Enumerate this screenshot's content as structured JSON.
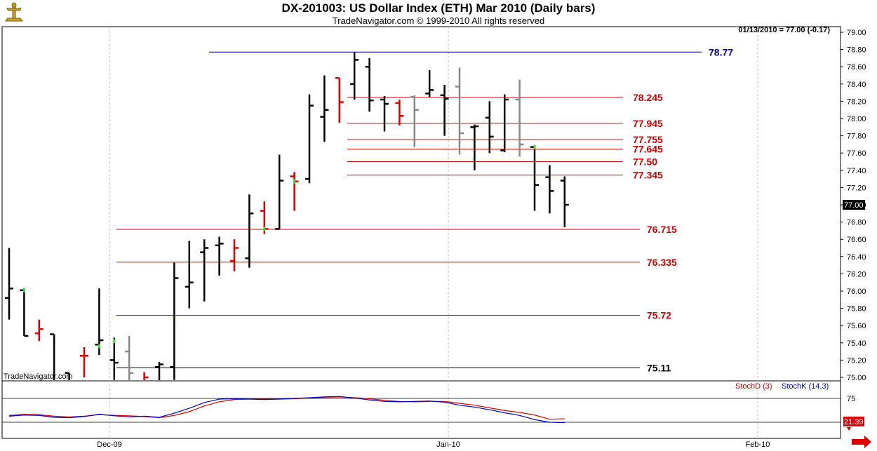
{
  "header": {
    "title": "DX-201003:  US Dollar Index (ETH) Mar 2010  (Daily bars)",
    "subtitle": "TradeNavigator.com © 1999-2010 All rights reserved",
    "last_readout": "01/13/2010 = 77.00 (-0.17)"
  },
  "watermark": "TradeNavigator.com",
  "price_tag": "77.00",
  "stoch_tag": "21.39",
  "colors": {
    "up": "#000000",
    "down": "#dd0000",
    "unchanged": "#888888",
    "bullish_close": "#33dd33",
    "level": "#cc0000",
    "top_level": "#000099",
    "stochD": "#dd0000",
    "stochK": "#0000cc",
    "grid": "#bbbbbb",
    "axis": "#000000"
  },
  "chart_data": [
    {
      "type": "ohlc",
      "ylim": [
        75.0,
        79.1
      ],
      "yticks": [
        "79.00",
        "78.80",
        "78.60",
        "78.40",
        "78.20",
        "78.00",
        "77.80",
        "77.60",
        "77.40",
        "77.20",
        "77.00",
        "76.80",
        "76.60",
        "76.40",
        "76.20",
        "76.00",
        "75.80",
        "75.60",
        "75.40",
        "75.20",
        "75.00"
      ],
      "xticks": [
        "Dec-09",
        "Jan-10",
        "Feb-10"
      ],
      "last_value": 77.0,
      "bars": [
        {
          "o": 75.92,
          "h": 76.5,
          "l": 75.67,
          "c": 76.03,
          "col": "up"
        },
        {
          "o": 76.01,
          "h": 76.01,
          "l": 75.48,
          "c": 75.48,
          "col": "up"
        },
        {
          "o": 75.51,
          "h": 75.67,
          "l": 75.42,
          "c": 75.56,
          "col": "down"
        },
        {
          "o": 75.5,
          "h": 75.5,
          "l": 74.9,
          "c": 74.95,
          "col": "up"
        },
        {
          "o": 75.05,
          "h": 75.05,
          "l": 74.75,
          "c": 74.8,
          "col": "up"
        },
        {
          "o": 75.25,
          "h": 75.35,
          "l": 75.0,
          "c": 75.25,
          "col": "down"
        },
        {
          "o": 75.38,
          "h": 76.03,
          "l": 75.26,
          "c": 75.43,
          "col": "up"
        },
        {
          "o": 75.2,
          "h": 75.46,
          "l": 74.9,
          "c": 75.17,
          "col": "up"
        },
        {
          "o": 75.3,
          "h": 75.48,
          "l": 74.95,
          "c": 75.05,
          "col": "gray"
        },
        {
          "o": 74.95,
          "h": 75.06,
          "l": 74.8,
          "c": 75.0,
          "col": "down"
        },
        {
          "o": 75.12,
          "h": 75.18,
          "l": 74.9,
          "c": 75.15,
          "col": "up"
        },
        {
          "o": 75.12,
          "h": 76.33,
          "l": 74.97,
          "c": 76.15,
          "col": "up"
        },
        {
          "o": 76.05,
          "h": 76.58,
          "l": 75.8,
          "c": 76.1,
          "col": "up"
        },
        {
          "o": 76.45,
          "h": 76.6,
          "l": 75.88,
          "c": 76.5,
          "col": "up"
        },
        {
          "o": 76.53,
          "h": 76.63,
          "l": 76.18,
          "c": 76.55,
          "col": "up"
        },
        {
          "o": 76.35,
          "h": 76.6,
          "l": 76.23,
          "c": 76.5,
          "col": "down"
        },
        {
          "o": 76.38,
          "h": 77.12,
          "l": 76.27,
          "c": 76.9,
          "col": "up"
        },
        {
          "o": 76.93,
          "h": 77.04,
          "l": 76.66,
          "c": 76.72,
          "col": "down"
        },
        {
          "o": 76.72,
          "h": 77.58,
          "l": 76.72,
          "c": 77.28,
          "col": "up"
        },
        {
          "o": 77.33,
          "h": 77.38,
          "l": 76.93,
          "c": 77.27,
          "col": "down"
        },
        {
          "o": 77.3,
          "h": 78.28,
          "l": 77.25,
          "c": 78.15,
          "col": "up"
        },
        {
          "o": 78.02,
          "h": 78.5,
          "l": 77.73,
          "c": 78.1,
          "col": "up"
        },
        {
          "o": 78.47,
          "h": 78.47,
          "l": 77.95,
          "c": 78.19,
          "col": "down"
        },
        {
          "o": 78.4,
          "h": 78.77,
          "l": 78.22,
          "c": 78.68,
          "col": "up"
        },
        {
          "o": 78.6,
          "h": 78.7,
          "l": 78.08,
          "c": 78.21,
          "col": "up"
        },
        {
          "o": 78.22,
          "h": 78.26,
          "l": 77.85,
          "c": 78.17,
          "col": "up"
        },
        {
          "o": 78.18,
          "h": 78.22,
          "l": 77.92,
          "c": 78.03,
          "col": "down"
        },
        {
          "o": 78.25,
          "h": 78.27,
          "l": 77.67,
          "c": 78.1,
          "col": "gray"
        },
        {
          "o": 78.29,
          "h": 78.56,
          "l": 78.25,
          "c": 78.33,
          "col": "up"
        },
        {
          "o": 78.27,
          "h": 78.39,
          "l": 77.8,
          "c": 78.23,
          "col": "up"
        },
        {
          "o": 78.37,
          "h": 78.59,
          "l": 77.58,
          "c": 77.83,
          "col": "gray"
        },
        {
          "o": 77.9,
          "h": 77.93,
          "l": 77.4,
          "c": 77.91,
          "col": "up"
        },
        {
          "o": 78.01,
          "h": 78.2,
          "l": 77.6,
          "c": 77.79,
          "col": "up"
        },
        {
          "o": 77.63,
          "h": 78.28,
          "l": 77.61,
          "c": 78.22,
          "col": "up"
        },
        {
          "o": 78.22,
          "h": 78.45,
          "l": 77.56,
          "c": 77.7,
          "col": "gray"
        },
        {
          "o": 77.67,
          "h": 77.68,
          "l": 76.93,
          "c": 77.23,
          "col": "up"
        },
        {
          "o": 77.32,
          "h": 77.46,
          "l": 76.9,
          "c": 77.16,
          "col": "up"
        },
        {
          "o": 77.28,
          "h": 77.33,
          "l": 76.74,
          "c": 77.0,
          "col": "up"
        }
      ],
      "levels": [
        {
          "value": 78.77,
          "label": "78.77",
          "color": "top_level"
        },
        {
          "value": 78.245,
          "label": "78.245",
          "color": "level"
        },
        {
          "value": 77.945,
          "label": "77.945",
          "color": "level"
        },
        {
          "value": 77.755,
          "label": "77.755",
          "color": "level"
        },
        {
          "value": 77.645,
          "label": "77.645",
          "color": "level"
        },
        {
          "value": 77.5,
          "label": "77.50",
          "color": "level"
        },
        {
          "value": 77.345,
          "label": "77.345",
          "color": "level"
        },
        {
          "value": 76.715,
          "label": "76.715",
          "color": "level"
        },
        {
          "value": 76.335,
          "label": "76.335",
          "color": "level"
        },
        {
          "value": 75.72,
          "label": "75.72",
          "color": "level"
        },
        {
          "value": 75.11,
          "label": "75.11",
          "color": "axis"
        }
      ]
    },
    {
      "type": "line",
      "ylim": [
        0,
        100
      ],
      "yticks": [
        "75"
      ],
      "series": [
        {
          "name": "StochD (3)",
          "color": "stochD",
          "values": [
            30,
            33,
            32,
            28,
            26,
            28,
            32,
            30,
            29,
            27,
            24,
            30,
            40,
            55,
            66,
            72,
            73,
            73,
            73,
            74,
            76,
            78,
            79,
            77,
            74,
            70,
            67,
            66,
            67,
            67,
            62,
            57,
            50,
            43,
            38,
            31,
            20,
            21
          ]
        },
        {
          "name": "StochK (14,3)",
          "color": "stochK",
          "values": [
            28,
            31,
            30,
            25,
            24,
            27,
            33,
            29,
            26,
            28,
            25,
            36,
            49,
            64,
            73,
            74,
            73,
            72,
            73,
            75,
            77,
            79,
            80,
            76,
            71,
            67,
            66,
            67,
            68,
            65,
            57,
            52,
            45,
            37,
            30,
            19,
            12,
            11
          ]
        }
      ]
    }
  ]
}
